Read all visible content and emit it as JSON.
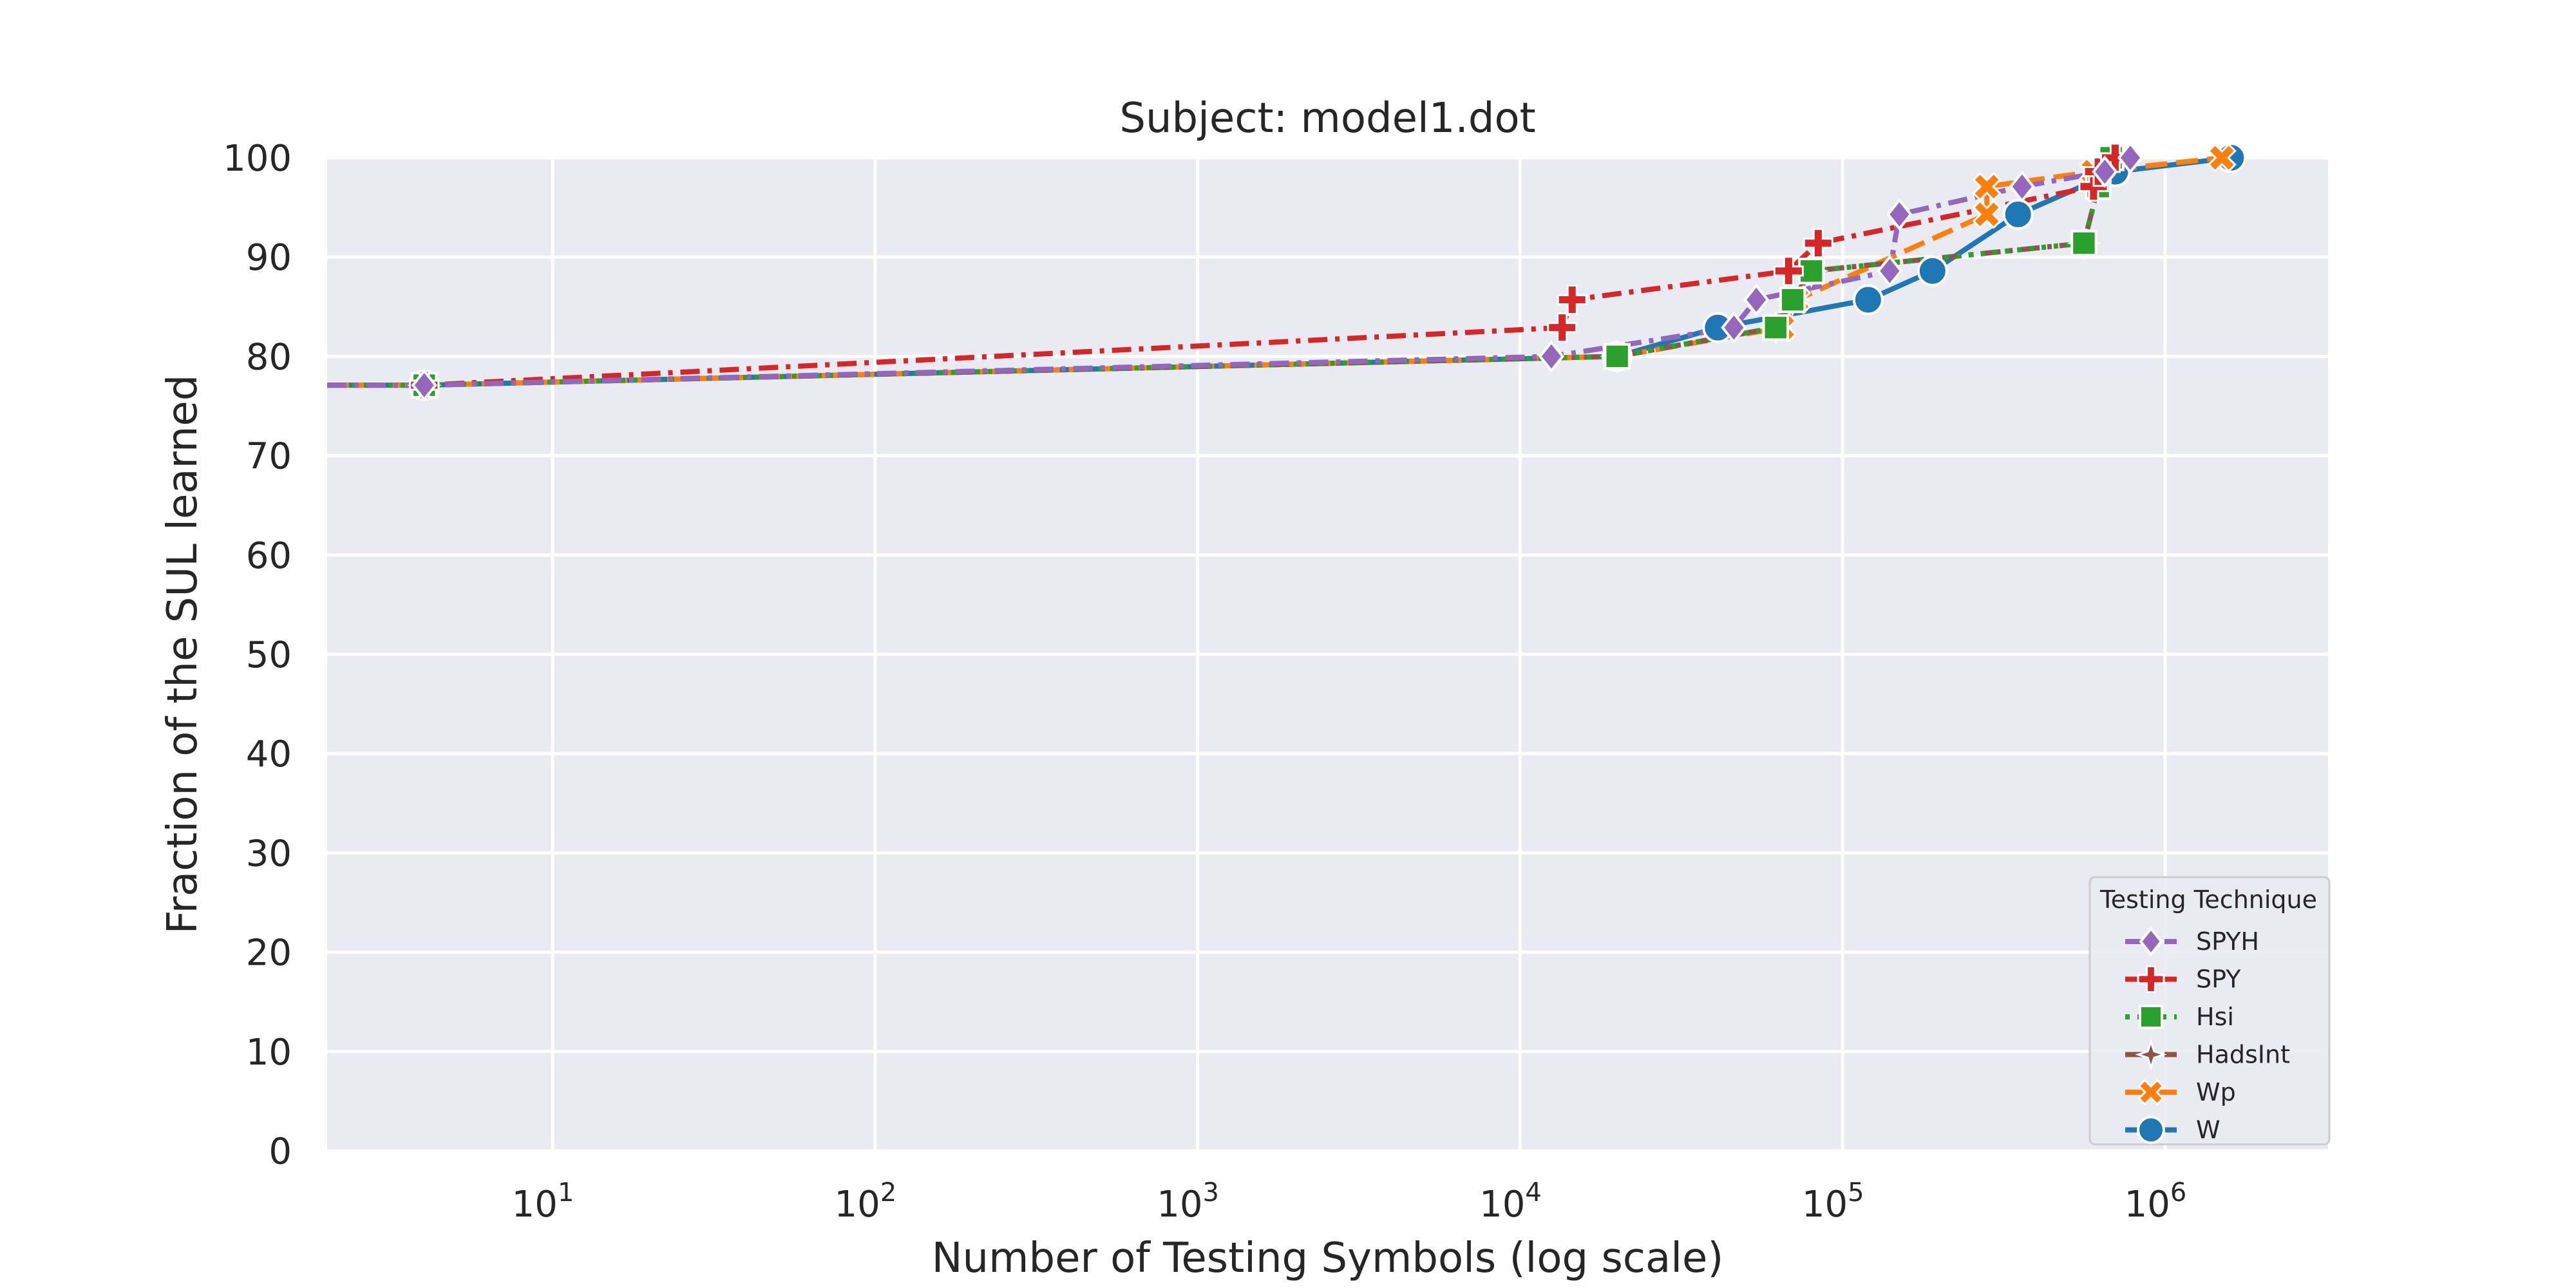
{
  "chart_data": {
    "type": "line",
    "title": "Subject: model1.dot",
    "xlabel": "Number of Testing Symbols (log scale)",
    "ylabel": "Fraction of the SUL learned",
    "xscale": "log",
    "xlim": [
      2,
      3200000
    ],
    "ylim": [
      0,
      100
    ],
    "x_ticks": [
      {
        "value": 10,
        "base": "10",
        "exp": "1"
      },
      {
        "value": 100,
        "base": "10",
        "exp": "2"
      },
      {
        "value": 1000,
        "base": "10",
        "exp": "3"
      },
      {
        "value": 10000,
        "base": "10",
        "exp": "4"
      },
      {
        "value": 100000,
        "base": "10",
        "exp": "5"
      },
      {
        "value": 1000000,
        "base": "10",
        "exp": "6"
      }
    ],
    "y_ticks": [
      0,
      10,
      20,
      30,
      40,
      50,
      60,
      70,
      80,
      90,
      100
    ],
    "grid": true,
    "background": "#eaeaf2",
    "legend": {
      "title": "Testing Technique",
      "position": "lower-right"
    },
    "series": [
      {
        "name": "W",
        "color": "#1f77b4",
        "dash": "solid",
        "marker": "circle",
        "points": [
          [
            2,
            77.1
          ],
          [
            4,
            77.1
          ],
          [
            20000,
            80.0
          ],
          [
            41000,
            82.9
          ],
          [
            120000,
            85.7
          ],
          [
            190000,
            88.6
          ],
          [
            350000,
            94.3
          ],
          [
            700000,
            98.6
          ],
          [
            1600000,
            100
          ]
        ]
      },
      {
        "name": "Wp",
        "color": "#ff7f0e",
        "dash": "dashed",
        "marker": "x",
        "points": [
          [
            2,
            77.1
          ],
          [
            4,
            77.1
          ],
          [
            20000,
            80.0
          ],
          [
            65000,
            82.9
          ],
          [
            72000,
            85.7
          ],
          [
            280000,
            94.3
          ],
          [
            280000,
            97.1
          ],
          [
            600000,
            98.6
          ],
          [
            1500000,
            100
          ]
        ]
      },
      {
        "name": "HadsInt",
        "color": "#8c564b",
        "dash": "dashdot",
        "marker": "star",
        "points": [
          [
            2,
            77.1
          ],
          [
            4,
            77.1
          ],
          [
            20000,
            80.0
          ],
          [
            62000,
            82.9
          ],
          [
            70000,
            85.7
          ],
          [
            80000,
            88.6
          ],
          [
            560000,
            91.4
          ],
          [
            620000,
            97.1
          ],
          [
            680000,
            100
          ]
        ]
      },
      {
        "name": "Hsi",
        "color": "#2ca02c",
        "dash": "dotted",
        "marker": "square",
        "points": [
          [
            2,
            77.1
          ],
          [
            4,
            77.1
          ],
          [
            20000,
            80.0
          ],
          [
            62000,
            82.9
          ],
          [
            70000,
            85.7
          ],
          [
            80000,
            88.6
          ],
          [
            560000,
            91.4
          ],
          [
            620000,
            97.1
          ],
          [
            680000,
            100
          ]
        ]
      },
      {
        "name": "SPY",
        "color": "#d62728",
        "dash": "dashdot",
        "marker": "plus",
        "points": [
          [
            2,
            77.1
          ],
          [
            4,
            77.1
          ],
          [
            13500,
            82.9
          ],
          [
            14500,
            85.7
          ],
          [
            68000,
            88.6
          ],
          [
            84000,
            91.4
          ],
          [
            600000,
            97.1
          ],
          [
            620000,
            98.6
          ],
          [
            700000,
            100
          ]
        ]
      },
      {
        "name": "SPYH",
        "color": "#9467bd",
        "dash": "dashdot",
        "marker": "diamond",
        "points": [
          [
            2,
            77.1
          ],
          [
            4,
            77.1
          ],
          [
            12500,
            80.0
          ],
          [
            46000,
            82.9
          ],
          [
            54000,
            85.7
          ],
          [
            140000,
            88.6
          ],
          [
            150000,
            94.3
          ],
          [
            360000,
            97.1
          ],
          [
            650000,
            98.6
          ],
          [
            780000,
            100
          ]
        ]
      }
    ]
  }
}
